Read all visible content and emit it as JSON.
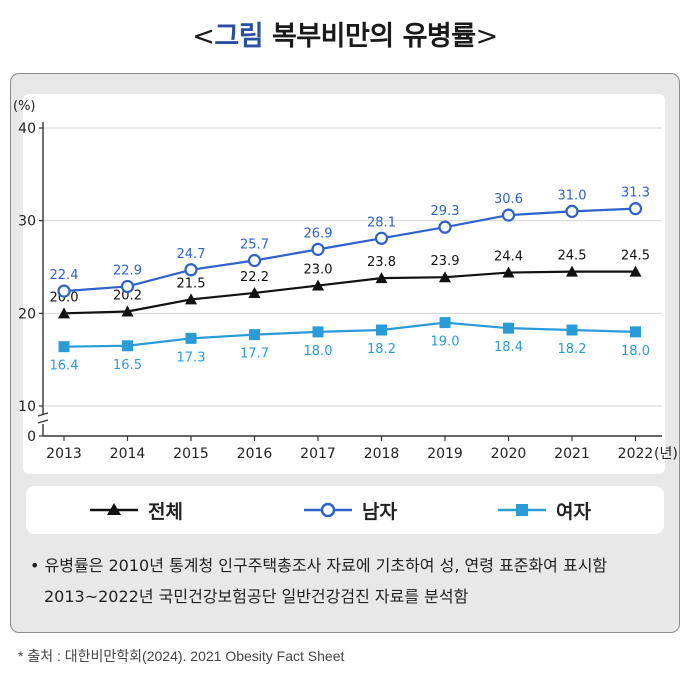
{
  "title": {
    "open": "<",
    "accent": "그림",
    "main": "복부비만의 유병률",
    "close": ">"
  },
  "chart_data": {
    "type": "line",
    "ylabel": "(%)",
    "xlabel": "",
    "x_unit": "(년)",
    "y_axis_break": true,
    "yticks": [
      0,
      10,
      20,
      30,
      40
    ],
    "ylim": [
      10,
      40
    ],
    "grid": "horizontal",
    "legend_position": "bottom",
    "categories": [
      "2013",
      "2014",
      "2015",
      "2016",
      "2017",
      "2018",
      "2019",
      "2020",
      "2021",
      "2022"
    ],
    "series": [
      {
        "name": "전체",
        "color": "#111111",
        "marker": "triangle",
        "values": [
          20.0,
          20.2,
          21.5,
          22.2,
          23.0,
          23.8,
          23.9,
          24.4,
          24.5,
          24.5
        ],
        "labels": [
          "20.0",
          "20.2",
          "21.5",
          "22.2",
          "23.0",
          "23.8",
          "23.9",
          "24.4",
          "24.5",
          "24.5"
        ]
      },
      {
        "name": "남자",
        "color": "#2e62c9",
        "marker": "open-circle",
        "values": [
          22.4,
          22.9,
          24.7,
          25.7,
          26.9,
          28.1,
          29.3,
          30.6,
          31.0,
          31.3
        ],
        "labels": [
          "22.4",
          "22.9",
          "24.7",
          "25.7",
          "26.9",
          "28.1",
          "29.3",
          "30.6",
          "31.0",
          "31.3"
        ]
      },
      {
        "name": "여자",
        "color": "#2b9bd8",
        "marker": "square",
        "values": [
          16.4,
          16.5,
          17.3,
          17.7,
          18.0,
          18.2,
          19.0,
          18.4,
          18.2,
          18.0
        ],
        "labels": [
          "16.4",
          "16.5",
          "17.3",
          "17.7",
          "18.0",
          "18.2",
          "19.0",
          "18.4",
          "18.2",
          "18.0"
        ]
      }
    ]
  },
  "notes": [
    "• 유병률은 2010년 통계청 인구주택총조사 자료에 기초하여 성, 연령 표준화여 표시함",
    "2013~2022년 국민건강보험공단 일반건강검진 자료를 분석함"
  ],
  "source": "* 출처 : 대한비만학회(2024). 2021 Obesity Fact Sheet"
}
